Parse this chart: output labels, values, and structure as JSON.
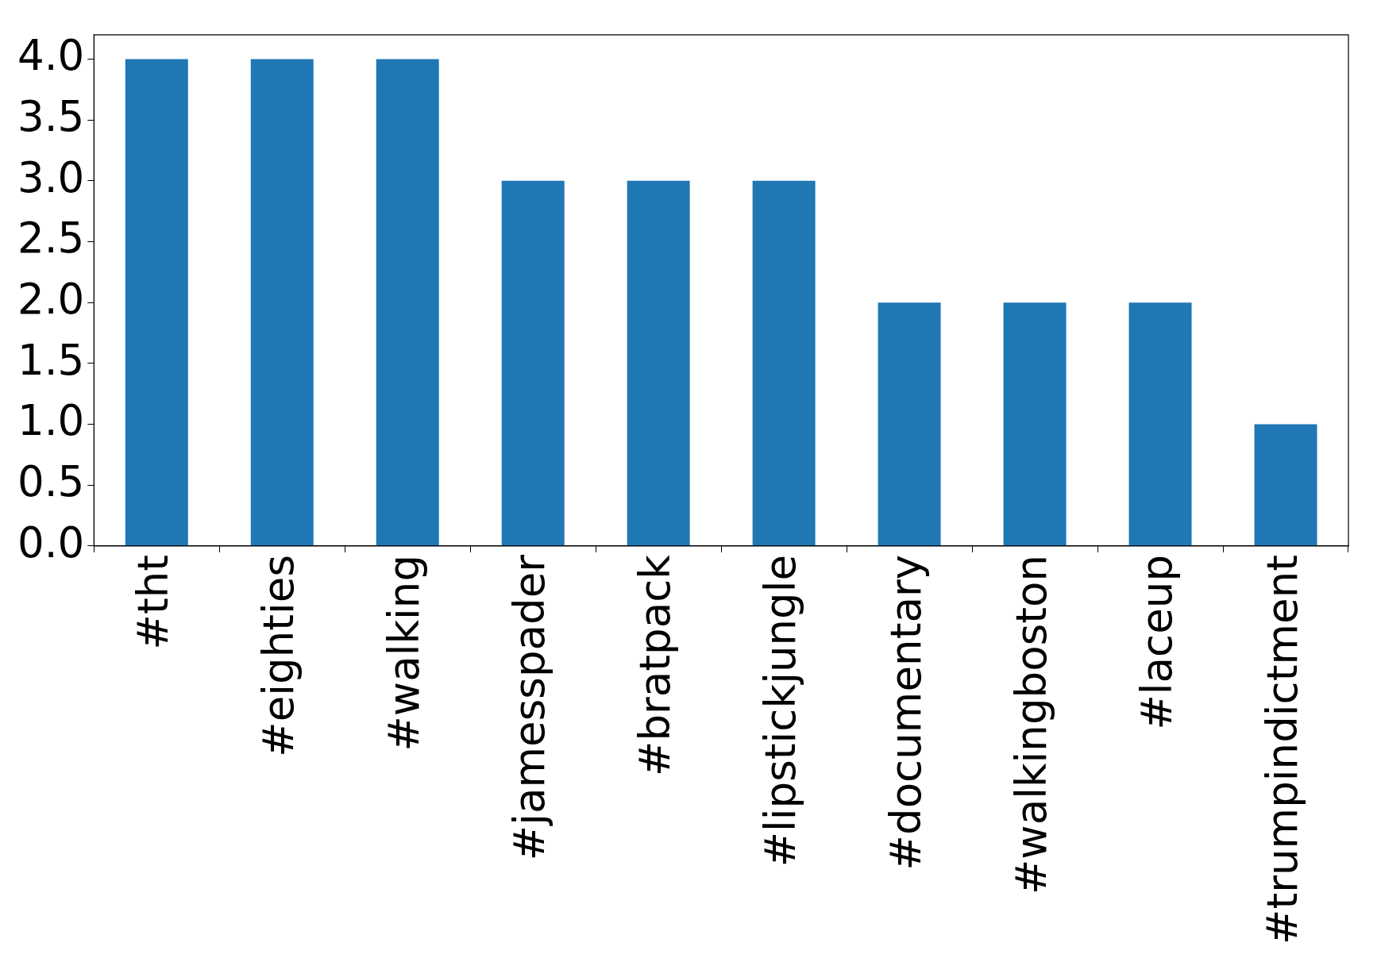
{
  "chart_data": {
    "type": "bar",
    "categories": [
      "#tht",
      "#eighties",
      "#walking",
      "#jamesspader",
      "#bratpack",
      "#lipstickjungle",
      "#documentary",
      "#walkingboston",
      "#laceup",
      "#trumpindictment"
    ],
    "values": [
      4,
      4,
      4,
      3,
      3,
      3,
      2,
      2,
      2,
      1
    ],
    "color": "#1f77b4",
    "ylim": [
      0,
      4.2
    ],
    "yticks": [
      {
        "value": 0,
        "label": "0.0"
      },
      {
        "value": 0.5,
        "label": "0.5"
      },
      {
        "value": 1,
        "label": "1.0"
      },
      {
        "value": 1.5,
        "label": "1.5"
      },
      {
        "value": 2,
        "label": "2.0"
      },
      {
        "value": 2.5,
        "label": "2.5"
      },
      {
        "value": 3,
        "label": "3.0"
      },
      {
        "value": 3.5,
        "label": "3.5"
      },
      {
        "value": 4,
        "label": "4.0"
      }
    ],
    "grid": false,
    "legend": false
  }
}
